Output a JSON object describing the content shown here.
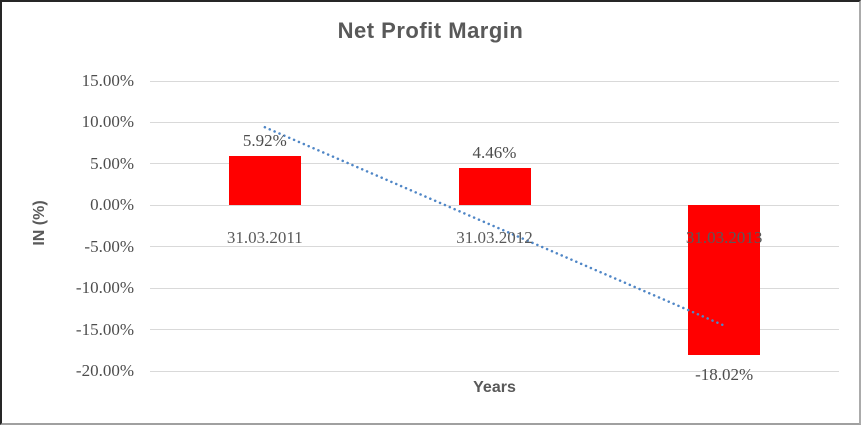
{
  "chart_data": {
    "type": "bar",
    "title": "Net Profit Margin",
    "xlabel": "Years",
    "ylabel": "IN (%)",
    "categories": [
      "31.03.2011",
      "31.03.2012",
      "31.03.2013"
    ],
    "values": [
      5.92,
      4.46,
      -18.02
    ],
    "data_labels": [
      "5.92%",
      "4.46%",
      "-18.02%"
    ],
    "y_ticks": [
      {
        "value": 15,
        "label": "15.00%"
      },
      {
        "value": 10,
        "label": "10.00%"
      },
      {
        "value": 5,
        "label": "5.00%"
      },
      {
        "value": 0,
        "label": "0.00%"
      },
      {
        "value": -5,
        "label": "-5.00%"
      },
      {
        "value": -10,
        "label": "-10.00%"
      },
      {
        "value": -15,
        "label": "-15.00%"
      },
      {
        "value": -20,
        "label": "-20.00%"
      }
    ],
    "ylim": [
      -20,
      15
    ],
    "grid": true,
    "legend": false,
    "colors": {
      "bar": "#ff0000",
      "gridline": "#d9d9d9",
      "title_text": "#595959",
      "label_text": "#4d4d4d"
    },
    "trendline": {
      "type": "linear",
      "style": "dotted",
      "color": "#4f86c6",
      "start_value": 9.42,
      "end_value": -14.52
    }
  }
}
